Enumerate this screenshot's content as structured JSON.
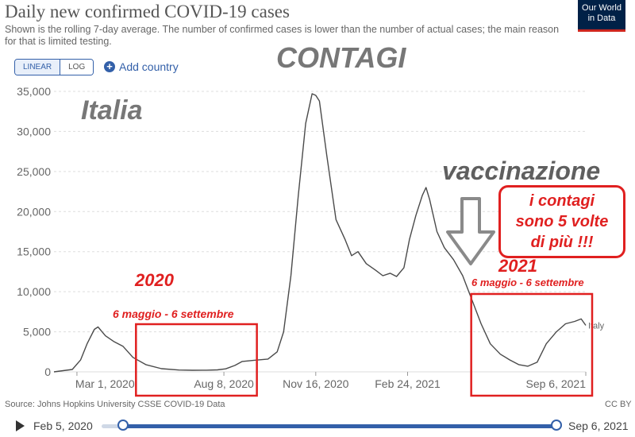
{
  "header": {
    "title": "Daily new confirmed COVID-19 cases",
    "subtitle": "Shown is the rolling 7-day average. The number of confirmed cases is lower than the number of actual cases; the main reason for that is limited testing.",
    "logo_line1": "Our World",
    "logo_line2": "in Data"
  },
  "controls": {
    "linear_label": "LINEAR",
    "log_label": "LOG",
    "active_scale": "linear",
    "add_country_label": "Add country"
  },
  "annotations": {
    "contagi": "CONTAGI",
    "italia": "Italia",
    "vaccinazione": "vaccinazione",
    "year_2020": "2020",
    "year_2021": "2021",
    "range_2020": "6 maggio - 6 settembre",
    "range_2021": "6 maggio - 6 settembre",
    "callout_line1": "i contagi",
    "callout_line2": "sono 5 volte",
    "callout_line3": "di più !!!"
  },
  "footer": {
    "source": "Source: Johns Hopkins University CSSE COVID-19 Data",
    "license": "CC BY",
    "timeline_start": "Feb 5, 2020",
    "timeline_end": "Sep 6, 2021"
  },
  "colors": {
    "accent": "#3360a9",
    "line": "#4a4a4a",
    "highlight": "#e02020",
    "grid": "#dddddd"
  },
  "chart_data": {
    "type": "line",
    "title": "Daily new confirmed COVID-19 cases",
    "ylim": [
      0,
      35000
    ],
    "yticks": [
      0,
      5000,
      10000,
      15000,
      20000,
      25000,
      30000,
      35000
    ],
    "ytick_labels": [
      "0",
      "5,000",
      "10,000",
      "15,000",
      "20,000",
      "25,000",
      "30,000",
      "35,000"
    ],
    "xticks": [
      "2020-03-01",
      "2020-08-08",
      "2020-11-16",
      "2021-02-24",
      "2021-09-06"
    ],
    "xtick_labels": [
      "Mar 1, 2020",
      "Aug 8, 2020",
      "Nov 16, 2020",
      "Feb 24, 2021",
      "Sep 6, 2021"
    ],
    "grid": true,
    "series": [
      {
        "name": "Italy",
        "x": [
          "2020-02-05",
          "2020-02-25",
          "2020-03-05",
          "2020-03-12",
          "2020-03-20",
          "2020-03-24",
          "2020-04-01",
          "2020-04-10",
          "2020-04-20",
          "2020-05-01",
          "2020-05-15",
          "2020-06-01",
          "2020-06-20",
          "2020-07-05",
          "2020-07-20",
          "2020-08-01",
          "2020-08-10",
          "2020-08-20",
          "2020-08-28",
          "2020-09-10",
          "2020-09-25",
          "2020-10-05",
          "2020-10-12",
          "2020-10-20",
          "2020-10-28",
          "2020-11-05",
          "2020-11-12",
          "2020-11-16",
          "2020-11-20",
          "2020-11-28",
          "2020-12-08",
          "2020-12-18",
          "2020-12-25",
          "2021-01-01",
          "2021-01-10",
          "2021-01-20",
          "2021-01-28",
          "2021-02-05",
          "2021-02-12",
          "2021-02-20",
          "2021-02-26",
          "2021-03-05",
          "2021-03-12",
          "2021-03-16",
          "2021-03-20",
          "2021-03-28",
          "2021-04-05",
          "2021-04-15",
          "2021-04-25",
          "2021-05-05",
          "2021-05-15",
          "2021-05-25",
          "2021-06-05",
          "2021-06-15",
          "2021-06-25",
          "2021-07-05",
          "2021-07-15",
          "2021-07-25",
          "2021-08-05",
          "2021-08-15",
          "2021-08-25",
          "2021-09-01",
          "2021-09-06"
        ],
        "y": [
          0,
          300,
          1500,
          3500,
          5300,
          5600,
          4500,
          3800,
          3200,
          1800,
          900,
          400,
          230,
          200,
          210,
          250,
          380,
          800,
          1300,
          1450,
          1600,
          2500,
          5000,
          12000,
          22000,
          31000,
          34700,
          34500,
          33800,
          27000,
          19000,
          16500,
          14500,
          15000,
          13500,
          12700,
          12000,
          12300,
          11900,
          13000,
          16500,
          19500,
          22000,
          23000,
          21500,
          17500,
          15500,
          14000,
          12000,
          9000,
          6000,
          3500,
          2200,
          1500,
          900,
          700,
          1200,
          3500,
          5000,
          6000,
          6300,
          6600,
          5800
        ]
      }
    ]
  }
}
